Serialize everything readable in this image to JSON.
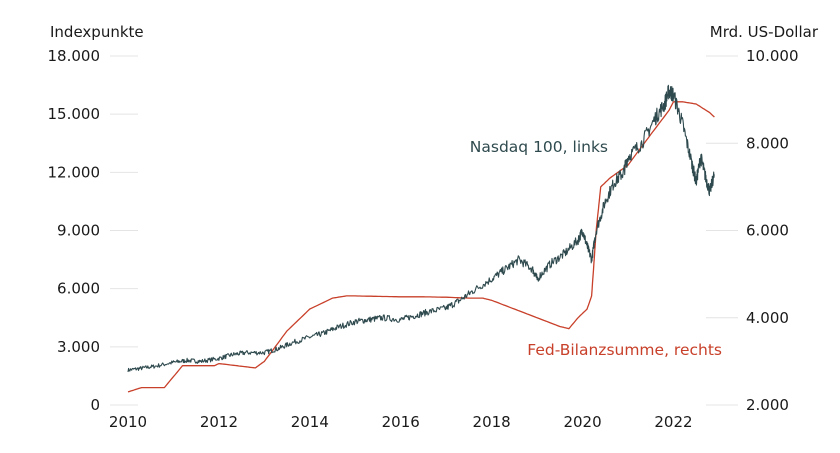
{
  "chart_data": {
    "type": "line",
    "left_axis_label": "Indexpunkte",
    "right_axis_label": "Mrd. US-Dollar",
    "left_ylim": [
      0,
      18000
    ],
    "left_ticks": [
      "0",
      "3.000",
      "6.000",
      "9.000",
      "12.000",
      "15.000",
      "18.000"
    ],
    "left_tick_values": [
      0,
      3000,
      6000,
      9000,
      12000,
      15000,
      18000
    ],
    "right_ylim": [
      2000,
      10000
    ],
    "right_ticks": [
      "2.000",
      "4.000",
      "6.000",
      "8.000",
      "10.000"
    ],
    "right_tick_values": [
      2000,
      4000,
      6000,
      8000,
      10000
    ],
    "xlim": [
      2010,
      2023.2
    ],
    "x_ticks": [
      "2010",
      "2012",
      "2014",
      "2016",
      "2018",
      "2020",
      "2022"
    ],
    "x_tick_values": [
      2010,
      2012,
      2014,
      2016,
      2018,
      2020,
      2022
    ],
    "grid": true,
    "series": [
      {
        "name": "Nasdaq 100, links",
        "axis": "left",
        "color": "#2f4a4e",
        "x": [
          2010.0,
          2010.3,
          2010.6,
          2011.0,
          2011.3,
          2011.6,
          2012.0,
          2012.3,
          2012.6,
          2013.0,
          2013.3,
          2013.6,
          2014.0,
          2014.3,
          2014.6,
          2015.0,
          2015.3,
          2015.6,
          2016.0,
          2016.3,
          2016.6,
          2017.0,
          2017.3,
          2017.6,
          2018.0,
          2018.3,
          2018.6,
          2018.9,
          2019.0,
          2019.3,
          2019.6,
          2019.9,
          2020.0,
          2020.1,
          2020.2,
          2020.3,
          2020.5,
          2020.7,
          2020.9,
          2021.0,
          2021.3,
          2021.6,
          2021.8,
          2021.9,
          2022.0,
          2022.2,
          2022.4,
          2022.5,
          2022.6,
          2022.7,
          2022.8,
          2022.9
        ],
        "values": [
          1800,
          1900,
          2000,
          2200,
          2300,
          2250,
          2400,
          2600,
          2700,
          2700,
          2900,
          3200,
          3500,
          3700,
          4000,
          4300,
          4400,
          4500,
          4400,
          4600,
          4800,
          5000,
          5400,
          5900,
          6500,
          7000,
          7500,
          7000,
          6500,
          7300,
          7800,
          8500,
          9000,
          8200,
          7500,
          9000,
          10500,
          11500,
          12000,
          12800,
          13500,
          14800,
          15500,
          16200,
          16000,
          14500,
          12500,
          11500,
          12800,
          11800,
          11000,
          11900
        ]
      },
      {
        "name": "Fed-Bilanzsumme, rechts",
        "axis": "right",
        "color": "#c8402a",
        "x": [
          2010.0,
          2010.3,
          2010.6,
          2010.8,
          2011.2,
          2011.5,
          2011.9,
          2012.0,
          2012.4,
          2012.8,
          2013.0,
          2013.5,
          2014.0,
          2014.5,
          2014.8,
          2015.0,
          2015.5,
          2016.0,
          2016.5,
          2017.0,
          2017.5,
          2017.8,
          2018.0,
          2018.5,
          2019.0,
          2019.5,
          2019.7,
          2019.9,
          2020.1,
          2020.2,
          2020.3,
          2020.4,
          2020.6,
          2021.0,
          2021.5,
          2021.9,
          2022.0,
          2022.2,
          2022.5,
          2022.8,
          2022.9
        ],
        "values": [
          2300,
          2400,
          2400,
          2400,
          2900,
          2900,
          2900,
          2950,
          2900,
          2850,
          3000,
          3700,
          4200,
          4450,
          4500,
          4500,
          4490,
          4480,
          4480,
          4470,
          4450,
          4450,
          4400,
          4200,
          4000,
          3800,
          3750,
          4000,
          4200,
          4500,
          6000,
          7000,
          7200,
          7500,
          8200,
          8750,
          8950,
          8950,
          8900,
          8700,
          8600
        ]
      }
    ]
  }
}
